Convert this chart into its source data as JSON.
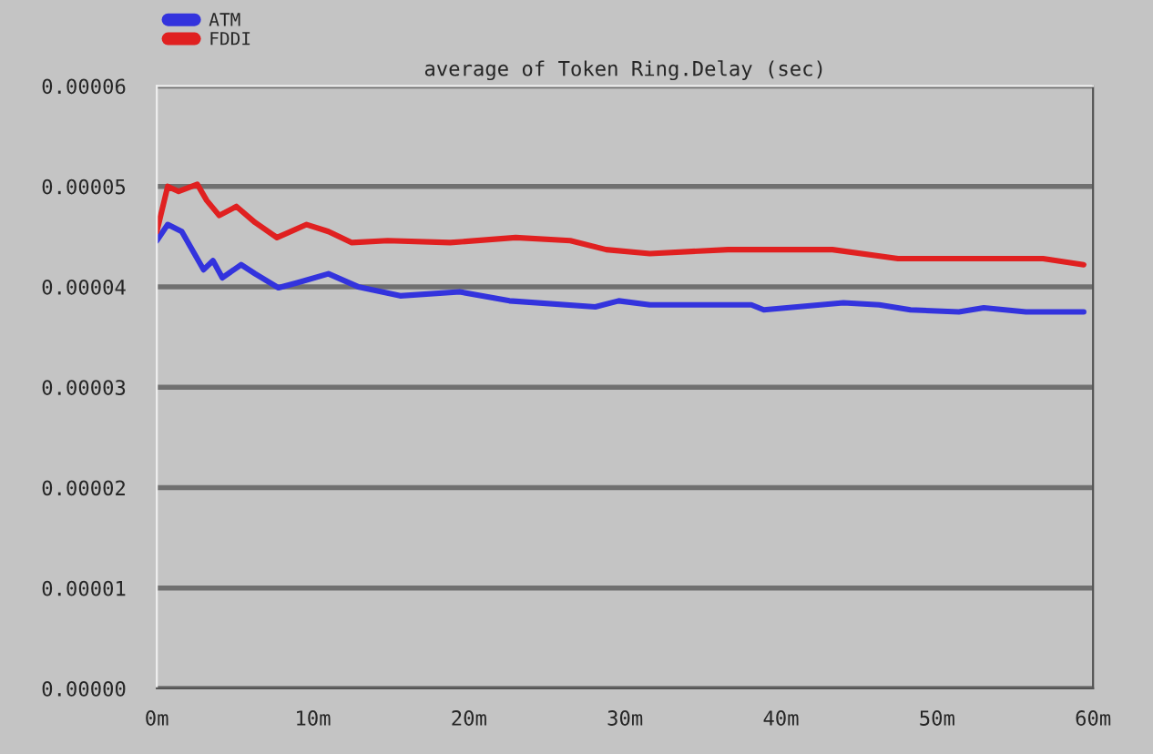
{
  "chart_data": {
    "type": "line",
    "title": "average of Token Ring.Delay (sec)",
    "xlim": [
      0,
      60
    ],
    "xticks": [
      {
        "value": 0,
        "label": "0m"
      },
      {
        "value": 10,
        "label": "10m"
      },
      {
        "value": 20,
        "label": "20m"
      },
      {
        "value": 30,
        "label": "30m"
      },
      {
        "value": 40,
        "label": "40m"
      },
      {
        "value": 50,
        "label": "50m"
      },
      {
        "value": 60,
        "label": "60m"
      }
    ],
    "ylim": [
      0,
      6e-05
    ],
    "yticks": [
      {
        "value": 0,
        "label": "0.00000"
      },
      {
        "value": 1e-05,
        "label": "0.00001"
      },
      {
        "value": 2e-05,
        "label": "0.00002"
      },
      {
        "value": 3e-05,
        "label": "0.00003"
      },
      {
        "value": 4e-05,
        "label": "0.00004"
      },
      {
        "value": 5e-05,
        "label": "0.00005"
      },
      {
        "value": 6e-05,
        "label": "0.00006"
      }
    ],
    "grid": "y",
    "legend": "top left",
    "marker": "none",
    "line_style": "solid",
    "series": [
      {
        "name": "ATM",
        "color": "#3333dd",
        "x": [
          0,
          0.7,
          1.6,
          3.0,
          3.6,
          4.2,
          5.4,
          6.3,
          7.8,
          9.0,
          11.0,
          12.9,
          15.6,
          19.4,
          22.6,
          28.1,
          29.6,
          31.6,
          38.1,
          38.9,
          44.0,
          46.3,
          48.3,
          51.4,
          53.0,
          55.7,
          59.4
        ],
        "values": [
          4.46e-05,
          4.62e-05,
          4.55e-05,
          4.17e-05,
          4.26e-05,
          4.09e-05,
          4.22e-05,
          4.13e-05,
          3.99e-05,
          4.04e-05,
          4.13e-05,
          4e-05,
          3.91e-05,
          3.95e-05,
          3.86e-05,
          3.8e-05,
          3.86e-05,
          3.82e-05,
          3.82e-05,
          3.77e-05,
          3.84e-05,
          3.82e-05,
          3.77e-05,
          3.75e-05,
          3.79e-05,
          3.75e-05,
          3.75e-05
        ]
      },
      {
        "name": "FDDI",
        "color": "#e02020",
        "x": [
          0,
          0.7,
          1.4,
          2.6,
          3.2,
          4.0,
          5.1,
          6.3,
          7.7,
          9.6,
          11.0,
          12.5,
          14.8,
          18.8,
          23.0,
          26.5,
          28.8,
          31.6,
          36.6,
          41.3,
          43.3,
          47.5,
          53.0,
          56.8,
          59.4
        ],
        "values": [
          4.55e-05,
          5e-05,
          4.95e-05,
          5.02e-05,
          4.86e-05,
          4.71e-05,
          4.8e-05,
          4.64e-05,
          4.49e-05,
          4.62e-05,
          4.55e-05,
          4.44e-05,
          4.46e-05,
          4.44e-05,
          4.49e-05,
          4.46e-05,
          4.37e-05,
          4.33e-05,
          4.37e-05,
          4.37e-05,
          4.37e-05,
          4.28e-05,
          4.28e-05,
          4.28e-05,
          4.22e-05
        ]
      }
    ]
  }
}
